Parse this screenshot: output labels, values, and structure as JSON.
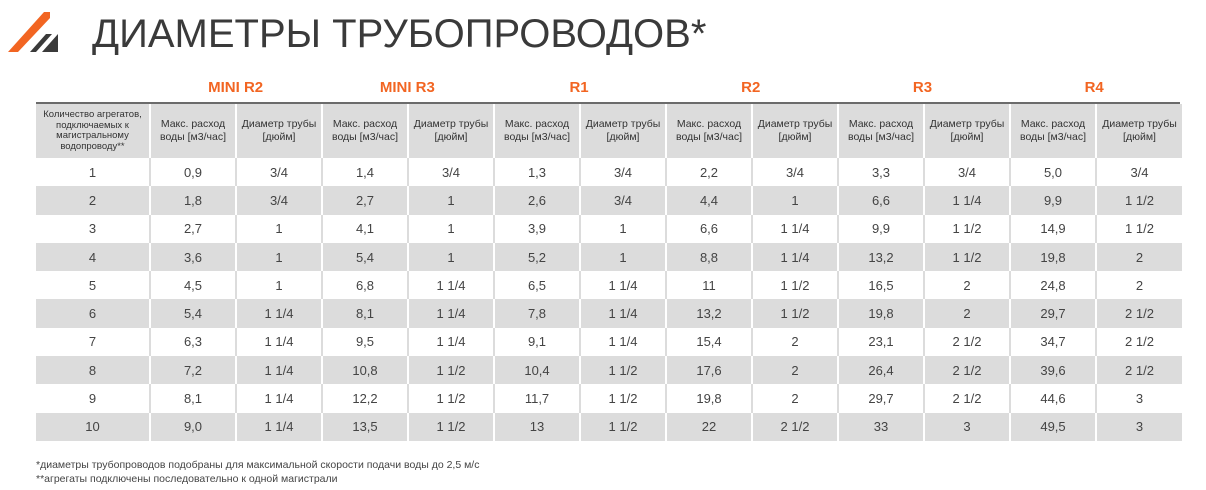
{
  "title": "ДИАМЕТРЫ ТРУБОПРОВОДОВ*",
  "colors": {
    "accent": "#f26522",
    "dark": "#3a3a3a",
    "stripe": "#dcdcdc"
  },
  "logo_icon": "arrow-logo-icon",
  "table": {
    "models": [
      "MINI R2",
      "MINI R3",
      "R1",
      "R2",
      "R3",
      "R4"
    ],
    "first_header": "Количество агрегатов, подключаемых к магистральному водопроводу**",
    "flow_header": "Макс. расход воды [м3/час]",
    "diameter_header": "Диаметр трубы [дюйм]",
    "rows": [
      [
        "1",
        "0,9",
        "3/4",
        "1,4",
        "3/4",
        "1,3",
        "3/4",
        "2,2",
        "3/4",
        "3,3",
        "3/4",
        "5,0",
        "3/4"
      ],
      [
        "2",
        "1,8",
        "3/4",
        "2,7",
        "1",
        "2,6",
        "3/4",
        "4,4",
        "1",
        "6,6",
        "1 1/4",
        "9,9",
        "1 1/2"
      ],
      [
        "3",
        "2,7",
        "1",
        "4,1",
        "1",
        "3,9",
        "1",
        "6,6",
        "1 1/4",
        "9,9",
        "1 1/2",
        "14,9",
        "1 1/2"
      ],
      [
        "4",
        "3,6",
        "1",
        "5,4",
        "1",
        "5,2",
        "1",
        "8,8",
        "1 1/4",
        "13,2",
        "1 1/2",
        "19,8",
        "2"
      ],
      [
        "5",
        "4,5",
        "1",
        "6,8",
        "1 1/4",
        "6,5",
        "1 1/4",
        "11",
        "1 1/2",
        "16,5",
        "2",
        "24,8",
        "2"
      ],
      [
        "6",
        "5,4",
        "1 1/4",
        "8,1",
        "1 1/4",
        "7,8",
        "1 1/4",
        "13,2",
        "1 1/2",
        "19,8",
        "2",
        "29,7",
        "2 1/2"
      ],
      [
        "7",
        "6,3",
        "1 1/4",
        "9,5",
        "1 1/4",
        "9,1",
        "1 1/4",
        "15,4",
        "2",
        "23,1",
        "2 1/2",
        "34,7",
        "2 1/2"
      ],
      [
        "8",
        "7,2",
        "1 1/4",
        "10,8",
        "1 1/2",
        "10,4",
        "1 1/2",
        "17,6",
        "2",
        "26,4",
        "2 1/2",
        "39,6",
        "2 1/2"
      ],
      [
        "9",
        "8,1",
        "1 1/4",
        "12,2",
        "1 1/2",
        "11,7",
        "1 1/2",
        "19,8",
        "2",
        "29,7",
        "2 1/2",
        "44,6",
        "3"
      ],
      [
        "10",
        "9,0",
        "1 1/4",
        "13,5",
        "1 1/2",
        "13",
        "1 1/2",
        "22",
        "2 1/2",
        "33",
        "3",
        "49,5",
        "3"
      ]
    ]
  },
  "footnotes": [
    "*диаметры трубопроводов подобраны для максимальной скорости подачи воды до 2,5 м/с",
    "**агрегаты подключены последовательно к одной магистрали"
  ]
}
